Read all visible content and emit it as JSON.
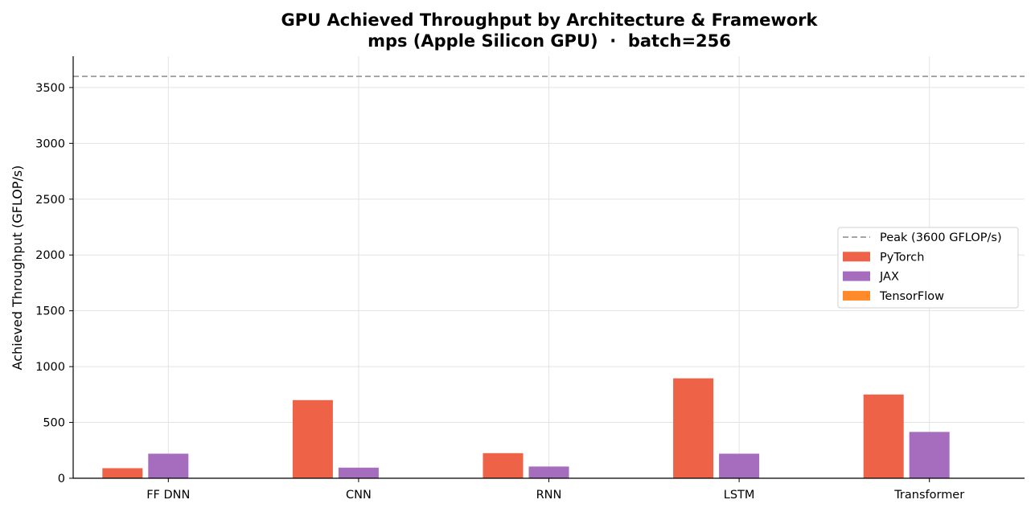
{
  "chart_data": {
    "type": "bar",
    "title": "GPU Achieved Throughput by Architecture & Framework",
    "subtitle": "mps (Apple Silicon GPU)  ·  batch=256",
    "xlabel": "",
    "ylabel": "Achieved Throughput (GFLOP/s)",
    "ylim": [
      0,
      3780
    ],
    "yticks": [
      0,
      500,
      1000,
      1500,
      2000,
      2500,
      3000,
      3500
    ],
    "categories": [
      "FF DNN",
      "CNN",
      "RNN",
      "LSTM",
      "Transformer"
    ],
    "series": [
      {
        "name": "PyTorch",
        "color": "#ee6247",
        "values": [
          90,
          700,
          225,
          895,
          750
        ]
      },
      {
        "name": "JAX",
        "color": "#a66dbf",
        "values": [
          220,
          95,
          105,
          220,
          415
        ]
      },
      {
        "name": "TensorFlow",
        "color": "#ff8a2a",
        "values": [
          0,
          0,
          0,
          0,
          0
        ]
      }
    ],
    "reference_line": {
      "label": "Peak (3600 GFLOP/s)",
      "value": 3600,
      "color": "#a6a6a6",
      "style": "dashed"
    },
    "grid": true,
    "legend_position": "center-right"
  }
}
